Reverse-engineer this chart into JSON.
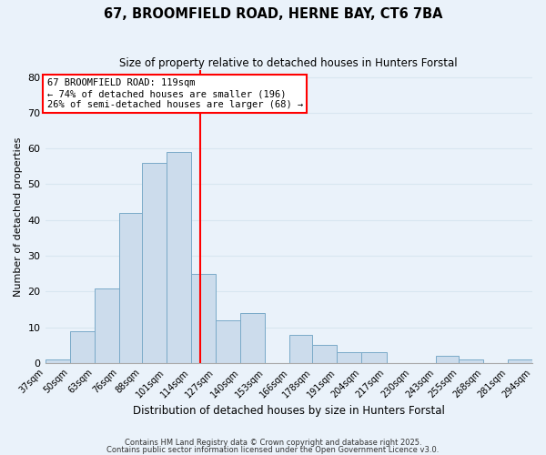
{
  "title": "67, BROOMFIELD ROAD, HERNE BAY, CT6 7BA",
  "subtitle": "Size of property relative to detached houses in Hunters Forstal",
  "xlabel": "Distribution of detached houses by size in Hunters Forstal",
  "ylabel": "Number of detached properties",
  "bar_color": "#ccdcec",
  "bar_edge_color": "#7aaac8",
  "grid_color": "#d8e6f0",
  "background_color": "#eaf2fa",
  "vline_x": 119,
  "vline_color": "red",
  "annotation_text": "67 BROOMFIELD ROAD: 119sqm\n← 74% of detached houses are smaller (196)\n26% of semi-detached houses are larger (68) →",
  "annotation_box_color": "white",
  "annotation_box_edge": "red",
  "bin_edges": [
    37,
    50,
    63,
    76,
    88,
    101,
    114,
    127,
    140,
    153,
    166,
    178,
    191,
    204,
    217,
    230,
    243,
    255,
    268,
    281,
    294
  ],
  "bin_labels": [
    "37sqm",
    "50sqm",
    "63sqm",
    "76sqm",
    "88sqm",
    "101sqm",
    "114sqm",
    "127sqm",
    "140sqm",
    "153sqm",
    "166sqm",
    "178sqm",
    "191sqm",
    "204sqm",
    "217sqm",
    "230sqm",
    "243sqm",
    "255sqm",
    "268sqm",
    "281sqm",
    "294sqm"
  ],
  "bar_heights": [
    1,
    9,
    21,
    42,
    56,
    59,
    25,
    12,
    14,
    0,
    8,
    5,
    3,
    3,
    0,
    0,
    2,
    1,
    0,
    1
  ],
  "ylim": [
    0,
    82
  ],
  "yticks": [
    0,
    10,
    20,
    30,
    40,
    50,
    60,
    70,
    80
  ],
  "footer1": "Contains HM Land Registry data © Crown copyright and database right 2025.",
  "footer2": "Contains public sector information licensed under the Open Government Licence v3.0."
}
